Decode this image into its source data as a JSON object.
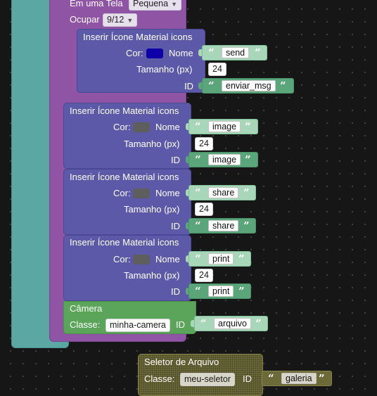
{
  "tela": {
    "label": "Em uma Tela",
    "size_value": "Pequena",
    "ocupar_label": "Ocupar",
    "ocupar_value": "9/12"
  },
  "icon_blocks": [
    {
      "title": "Inserir Ícone Material icons",
      "cor_label": "Cor:",
      "color": "#0d00a8",
      "nome_label": "Nome",
      "nome": "send",
      "tamanho_label": "Tamanho (px)",
      "tamanho": "24",
      "id_label": "ID",
      "id": "enviar_msg"
    },
    {
      "title": "Inserir Ícone Material icons",
      "cor_label": "Cor:",
      "color": "#5e5e5e",
      "nome_label": "Nome",
      "nome": "image",
      "tamanho_label": "Tamanho (px)",
      "tamanho": "24",
      "id_label": "ID",
      "id": "image"
    },
    {
      "title": "Inserir Ícone Material icons",
      "cor_label": "Cor:",
      "color": "#5e5e5e",
      "nome_label": "Nome",
      "nome": "share",
      "tamanho_label": "Tamanho (px)",
      "tamanho": "24",
      "id_label": "ID",
      "id": "share"
    },
    {
      "title": "Inserir Ícone Material icons",
      "cor_label": "Cor:",
      "color": "#5e5e5e",
      "nome_label": "Nome",
      "nome": "print",
      "tamanho_label": "Tamanho (px)",
      "tamanho": "24",
      "id_label": "ID",
      "id": "print"
    }
  ],
  "camera": {
    "title": "Câmera",
    "classe_label": "Classe:",
    "classe_value": "minha-camera",
    "id_label": "ID",
    "id_value": "arquivo"
  },
  "file_selector": {
    "title": "Seletor de Arquivo",
    "classe_label": "Classe:",
    "classe_value": "meu-seletor",
    "id_label": "ID",
    "id_value": "galeria"
  },
  "colors": {
    "workspace_bg": "#161616",
    "teal_block": "#5ba7a4",
    "purple_block": "#8f55a4",
    "icon_block": "#5c5aa8",
    "camera_block": "#5ba55b",
    "text_block": "#a7d6b8",
    "text_block_dark": "#5ba57b",
    "file_selector_block": "#6d6a3a"
  },
  "quote_open": "“",
  "quote_close": "”"
}
